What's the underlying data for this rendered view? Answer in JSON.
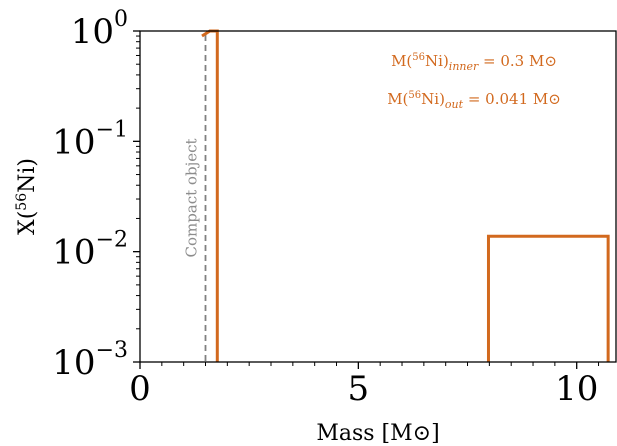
{
  "chart_data": {
    "type": "line",
    "title": "",
    "xlabel": "Mass [M⊙]",
    "ylabel": "X(56Ni)",
    "xlim": [
      0,
      10.9
    ],
    "ylim": [
      0.001,
      1
    ],
    "yscale": "log",
    "grid": false,
    "x_ticks": [
      0,
      5,
      10
    ],
    "x_tick_labels": [
      "0",
      "5",
      "10"
    ],
    "y_ticks": [
      0.001,
      0.01,
      0.1,
      1
    ],
    "y_tick_labels": [
      {
        "base": "10",
        "exp": "−3"
      },
      {
        "base": "10",
        "exp": "−2"
      },
      {
        "base": "10",
        "exp": "−1"
      },
      {
        "base": "10",
        "exp": "0"
      }
    ],
    "series": [
      {
        "color": "#d2691e",
        "segments": [
          [
            [
              1.42,
              0.9
            ],
            [
              1.6,
              1.0
            ],
            [
              1.77,
              1.0
            ],
            [
              1.77,
              0.001
            ]
          ],
          [
            [
              7.98,
              0.001
            ],
            [
              7.98,
              0.0138
            ],
            [
              10.72,
              0.0138
            ],
            [
              10.72,
              0.001
            ]
          ]
        ]
      }
    ],
    "vertical_lines": [
      {
        "x": 1.5,
        "style": "dashed",
        "color": "#808080",
        "label": "Compact object"
      }
    ],
    "annotations": [
      {
        "pre": "M(",
        "sup": "56",
        "mid": "Ni)",
        "sub": "inner",
        "post": " = 0.3 M⊙",
        "color": "#d2691e"
      },
      {
        "pre": "M(",
        "sup": "56",
        "mid": "Ni)",
        "sub": "out",
        "post": " = 0.041 M⊙",
        "color": "#d2691e"
      }
    ]
  }
}
